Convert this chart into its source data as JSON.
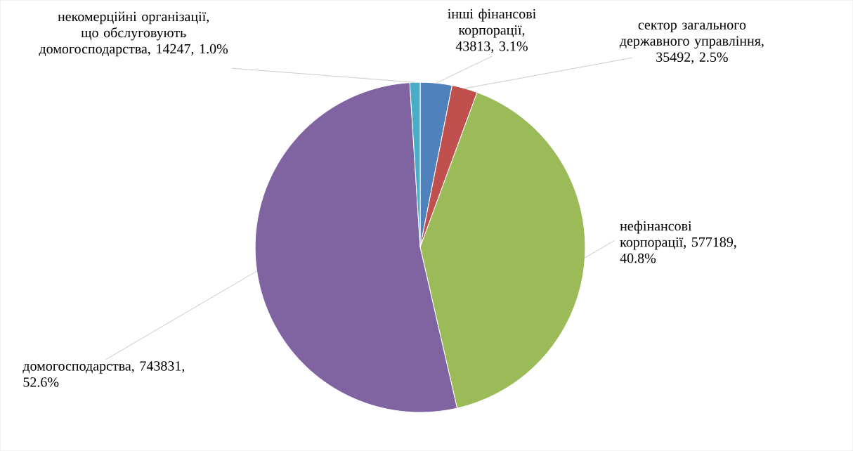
{
  "chart_data": {
    "type": "pie",
    "categories": [
      "інші фінансові корпорації",
      "сектор загального державного управління",
      "нефінансові корпорації",
      "домогосподарства",
      "некомерційні організації, що обслуговують домогосподарства"
    ],
    "values": [
      43813,
      35492,
      577189,
      743831,
      14247
    ],
    "value_labels": [
      ", 43813, 3.1%",
      ", 35492, 2.5%",
      ", 577189, 40.8%",
      ", 743831, 52.6%",
      ", 14247, 1.0%"
    ],
    "colors": [
      "#4f81bd",
      "#c0504d",
      "#9bbb59",
      "#8064a2",
      "#4bacc6"
    ]
  }
}
